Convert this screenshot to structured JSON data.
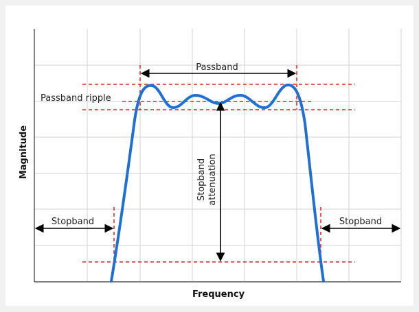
{
  "labels": {
    "passband": "Passband",
    "passband_ripple": "Passband ripple",
    "stopband_left": "Stopband",
    "stopband_right": "Stopband",
    "stopband_attenuation_line1": "Stopband",
    "stopband_attenuation_line2": "attenuation",
    "x_axis": "Frequency",
    "y_axis": "Magnitude"
  },
  "colors": {
    "curve": "#1f6fd6",
    "guides": "#e02020",
    "arrows": "#000000",
    "grid": "#d2d2d2",
    "axes": "#333333"
  }
}
